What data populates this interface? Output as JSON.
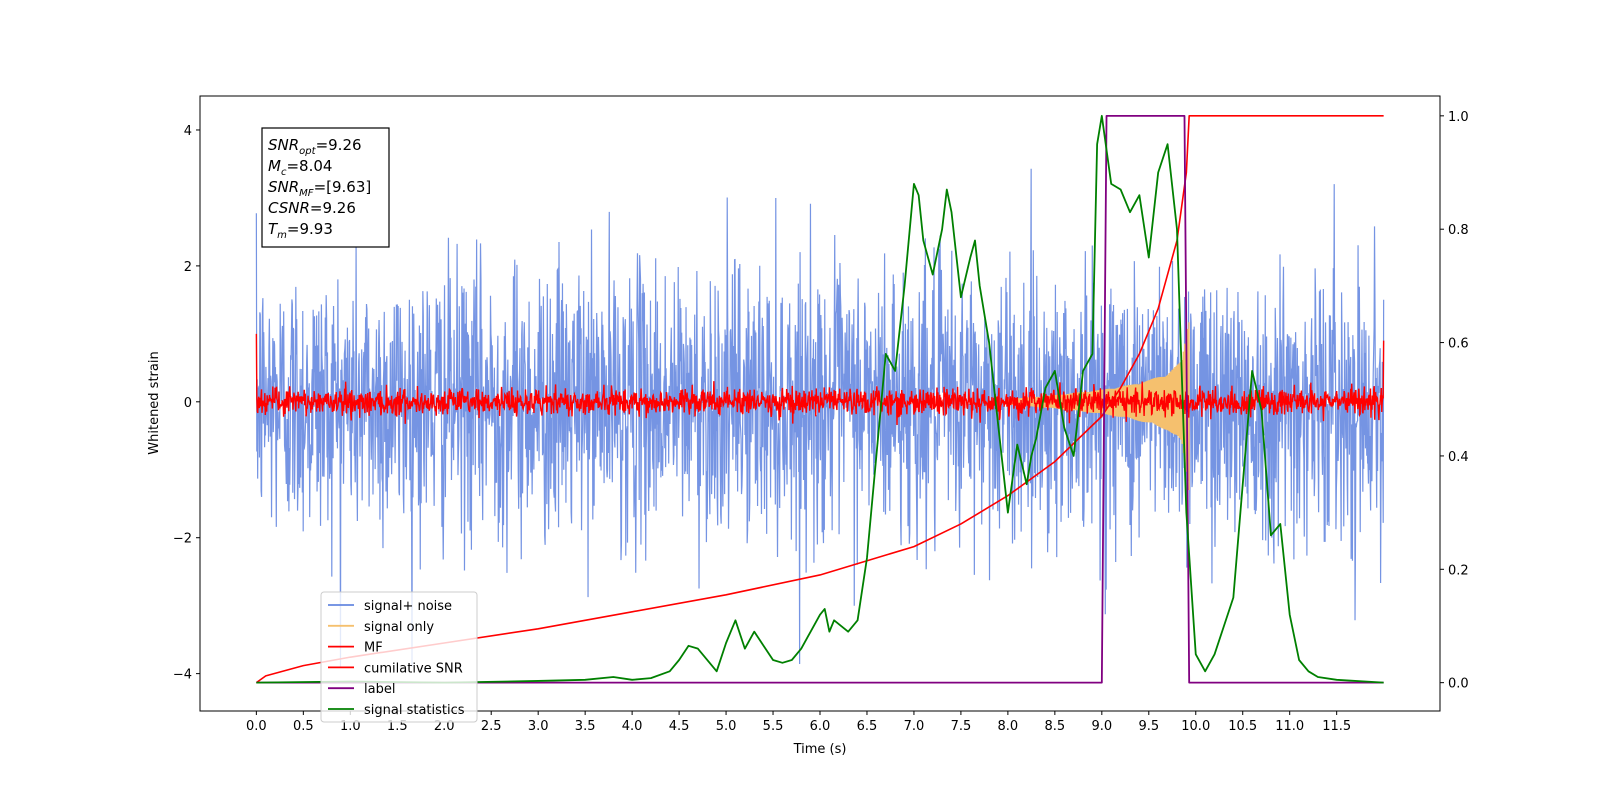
{
  "chart_data": {
    "type": "line",
    "title": "",
    "xlabel": "Time (s)",
    "ylabel": "Whitened strain",
    "ylabel_right": "",
    "xlim": [
      -0.6,
      12.6
    ],
    "ylim": [
      -4.55,
      4.5
    ],
    "ylim_right": [
      -0.05,
      1.035
    ],
    "x_ticks": [
      0.0,
      0.5,
      1.0,
      1.5,
      2.0,
      2.5,
      3.0,
      3.5,
      4.0,
      4.5,
      5.0,
      5.5,
      6.0,
      6.5,
      7.0,
      7.5,
      8.0,
      8.5,
      9.0,
      9.5,
      10.0,
      10.5,
      11.0,
      11.5
    ],
    "x_tick_labels": [
      "0.0",
      "0.5",
      "1.0",
      "1.5",
      "2.0",
      "2.5",
      "3.0",
      "3.5",
      "4.0",
      "4.5",
      "5.0",
      "5.5",
      "6.0",
      "6.5",
      "7.0",
      "7.5",
      "8.0",
      "8.5",
      "9.0",
      "9.5",
      "10.0",
      "10.5",
      "11.0",
      "11.5"
    ],
    "y_ticks": [
      -4,
      -2,
      0,
      2,
      4
    ],
    "y_tick_labels": [
      "−4",
      "−2",
      "0",
      "2",
      "4"
    ],
    "y_ticks_right": [
      0.0,
      0.2,
      0.4,
      0.6,
      0.8,
      1.0
    ],
    "y_tick_labels_right": [
      "0.0",
      "0.2",
      "0.4",
      "0.6",
      "0.8",
      "1.0"
    ],
    "grid": false,
    "legend_placement": "lower-left",
    "annotation": {
      "lines": [
        {
          "base": "SNR",
          "sub": "opt",
          "value": "=9.26"
        },
        {
          "base": "M",
          "sub": "c",
          "value": "=8.04"
        },
        {
          "base": "SNR",
          "sub": "MF",
          "value": "=[9.63]"
        },
        {
          "base": "CSNR",
          "sub": "",
          "value": "=9.26"
        },
        {
          "base": "T",
          "sub": "m",
          "value": "=9.93"
        }
      ]
    },
    "series": [
      {
        "name": "signal+ noise",
        "color": "#6688e0",
        "axis": "left",
        "kind": "noise",
        "x_range": [
          0.0,
          12.0
        ],
        "amplitude_std": 1.0,
        "approx_extremes": [
          4.1,
          -3.8
        ]
      },
      {
        "name": "signal only",
        "color": "#f5c06e",
        "axis": "left",
        "kind": "chirp",
        "x": [
          8.0,
          8.5,
          9.0,
          9.3,
          9.5,
          9.7,
          9.85,
          9.93
        ],
        "envelope": [
          0.04,
          0.1,
          0.18,
          0.25,
          0.32,
          0.42,
          0.6,
          1.3
        ]
      },
      {
        "name": "MF",
        "color": "#ff0000",
        "axis": "left",
        "kind": "noise",
        "x_range": [
          0.0,
          12.0
        ],
        "amplitude_std": 0.1,
        "approx_edges": [
          1.0,
          0.9
        ]
      },
      {
        "name": "cumilative SNR",
        "color": "#ff0000",
        "axis": "right",
        "x": [
          0.0,
          0.1,
          0.5,
          1.0,
          2.0,
          3.0,
          4.0,
          5.0,
          6.0,
          7.0,
          7.5,
          8.0,
          8.5,
          9.0,
          9.2,
          9.4,
          9.6,
          9.8,
          9.9,
          9.93,
          12.0
        ],
        "values": [
          0.0,
          0.012,
          0.03,
          0.045,
          0.07,
          0.095,
          0.125,
          0.155,
          0.19,
          0.24,
          0.28,
          0.33,
          0.39,
          0.47,
          0.52,
          0.58,
          0.66,
          0.78,
          0.9,
          1.0,
          1.0
        ]
      },
      {
        "name": "label",
        "color": "#800080",
        "axis": "right",
        "x": [
          0.0,
          9.0,
          9.05,
          9.88,
          9.93,
          12.0
        ],
        "values": [
          0.0,
          0.0,
          1.0,
          1.0,
          0.0,
          0.0
        ]
      },
      {
        "name": "signal statistics",
        "color": "#008000",
        "axis": "right",
        "x": [
          0.0,
          1.0,
          2.0,
          3.0,
          3.5,
          3.8,
          4.0,
          4.2,
          4.4,
          4.5,
          4.6,
          4.7,
          4.9,
          5.0,
          5.1,
          5.2,
          5.3,
          5.4,
          5.5,
          5.6,
          5.7,
          5.8,
          5.9,
          6.0,
          6.05,
          6.1,
          6.15,
          6.3,
          6.4,
          6.5,
          6.6,
          6.7,
          6.8,
          6.9,
          7.0,
          7.05,
          7.1,
          7.2,
          7.3,
          7.35,
          7.4,
          7.5,
          7.6,
          7.65,
          7.7,
          7.8,
          7.9,
          8.0,
          8.1,
          8.2,
          8.25,
          8.3,
          8.4,
          8.5,
          8.6,
          8.7,
          8.8,
          8.9,
          8.95,
          9.0,
          9.1,
          9.2,
          9.3,
          9.4,
          9.5,
          9.6,
          9.7,
          9.8,
          9.9,
          10.0,
          10.1,
          10.2,
          10.3,
          10.4,
          10.5,
          10.6,
          10.7,
          10.8,
          10.9,
          11.0,
          11.1,
          11.2,
          11.3,
          11.5,
          12.0
        ],
        "values": [
          0.0,
          0.002,
          0.0,
          0.003,
          0.005,
          0.01,
          0.005,
          0.008,
          0.02,
          0.04,
          0.065,
          0.06,
          0.02,
          0.07,
          0.11,
          0.06,
          0.09,
          0.065,
          0.04,
          0.035,
          0.04,
          0.06,
          0.09,
          0.12,
          0.13,
          0.09,
          0.11,
          0.09,
          0.11,
          0.22,
          0.4,
          0.58,
          0.55,
          0.7,
          0.88,
          0.86,
          0.78,
          0.72,
          0.8,
          0.87,
          0.83,
          0.68,
          0.75,
          0.78,
          0.7,
          0.6,
          0.45,
          0.3,
          0.42,
          0.35,
          0.4,
          0.43,
          0.52,
          0.55,
          0.45,
          0.4,
          0.55,
          0.58,
          0.95,
          1.0,
          0.88,
          0.87,
          0.83,
          0.86,
          0.75,
          0.9,
          0.95,
          0.8,
          0.3,
          0.05,
          0.02,
          0.05,
          0.1,
          0.15,
          0.35,
          0.55,
          0.48,
          0.26,
          0.28,
          0.12,
          0.04,
          0.02,
          0.01,
          0.005,
          0.0
        ]
      }
    ]
  }
}
